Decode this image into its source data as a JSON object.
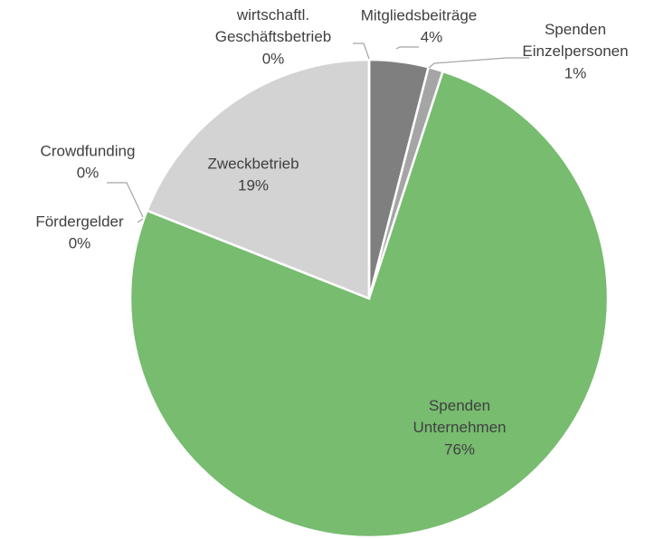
{
  "chart_data": {
    "type": "pie",
    "categories": [
      "Mitgliedsbeiträge",
      "Spenden Einzelpersonen",
      "Spenden Unternehmen",
      "Fördergelder",
      "Crowdfunding",
      "Zweckbetrieb",
      "wirtschaftl. Geschäftsbetrieb"
    ],
    "values": [
      4,
      1,
      76,
      0,
      0,
      19,
      0
    ],
    "value_labels": [
      "4%",
      "1%",
      "76%",
      "0%",
      "0%",
      "19%",
      "0%"
    ],
    "colors": [
      "#7f7f7f",
      "#a5a5a5",
      "#77bc6f",
      "#4472c4",
      "#ffc000",
      "#d3d3d3",
      "#5b9bd5"
    ]
  }
}
